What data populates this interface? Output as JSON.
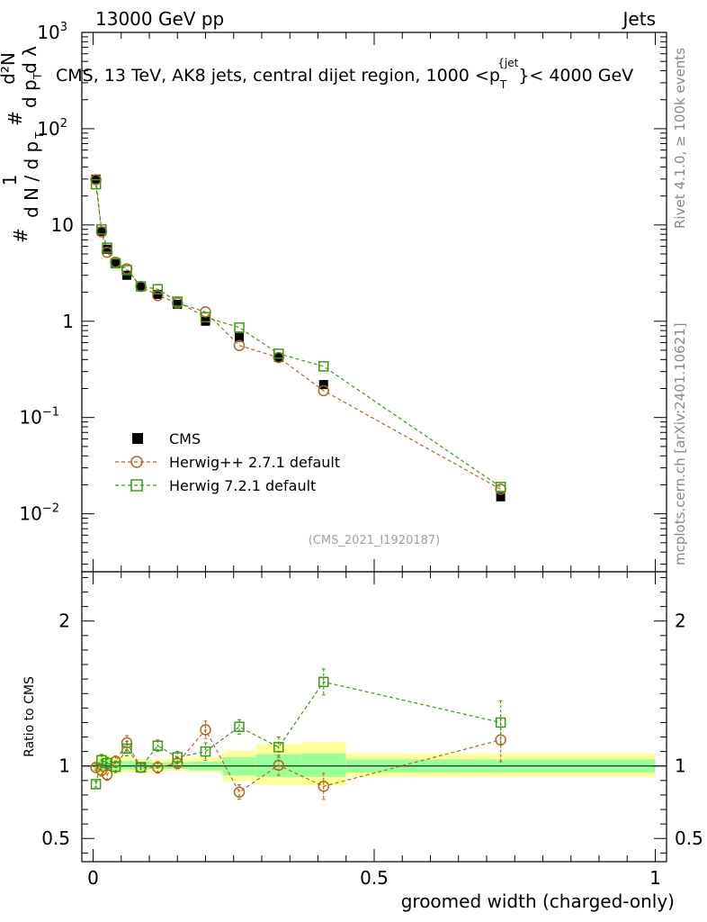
{
  "header": {
    "left": "13000 GeV pp",
    "right": "Jets"
  },
  "side_labels": {
    "rivet": "Rivet 4.1.0, ≥ 100k events",
    "mcplots": "mcplots.cern.ch [arXiv:2401.10621]"
  },
  "colors": {
    "cms": "#000000",
    "herwigpp": "#b5651d",
    "herwig7": "#3a9a12",
    "band_outer": "#ffff99",
    "band_inner": "#99ff99"
  },
  "chart_data": [
    {
      "type": "scatter",
      "panel": "main",
      "title": "CMS, 13 TeV, AK8 jets, central dijet region, 1000 <p_T^{jet}< 4000 GeV",
      "title_parts": {
        "pre": "CMS, 13 TeV, AK8 jets, central dijet region, 1000 <p",
        "sub": "T",
        "sup": "{jet",
        "post": "}< 4000 GeV"
      },
      "ylabel": "1/(dN/dp_T) d²N/(dp_T dλ)",
      "ylabel_parts": {
        "frac1_num": "1",
        "frac1_den": "d N / d p",
        "frac2_num": "d²N",
        "frac2_den": "d p  d λ",
        "hash": "#",
        "sub_T": "T"
      },
      "yscale": "log",
      "ylim": [
        0.0025,
        1000
      ],
      "xlim": [
        -0.02,
        1.02
      ],
      "y_ticks": [
        {
          "value": 0.01,
          "base": "10",
          "exp": "−2"
        },
        {
          "value": 0.1,
          "base": "10",
          "exp": "−1"
        },
        {
          "value": 1,
          "base": "1",
          "exp": ""
        },
        {
          "value": 10,
          "base": "10",
          "exp": ""
        },
        {
          "value": 100,
          "base": "10",
          "exp": "2"
        },
        {
          "value": 1000,
          "base": "10",
          "exp": "3"
        }
      ],
      "watermark": "(CMS_2021_I1920187)",
      "legend_position": "lower-left",
      "series": [
        {
          "name": "CMS",
          "style": "filled-square",
          "x": [
            0.005,
            0.015,
            0.025,
            0.04,
            0.06,
            0.085,
            0.115,
            0.15,
            0.2,
            0.26,
            0.33,
            0.41,
            0.725
          ],
          "y": [
            30,
            8.6,
            5.6,
            4.0,
            3.0,
            2.3,
            1.9,
            1.5,
            1.0,
            0.68,
            0.42,
            0.22,
            0.015
          ]
        },
        {
          "name": "Herwig++ 2.7.1 default",
          "style": "open-circle",
          "x": [
            0.005,
            0.015,
            0.025,
            0.04,
            0.06,
            0.085,
            0.115,
            0.15,
            0.2,
            0.26,
            0.33,
            0.41,
            0.725
          ],
          "y": [
            29.5,
            8.5,
            5.2,
            4.1,
            3.5,
            2.3,
            1.85,
            1.55,
            1.25,
            0.56,
            0.42,
            0.19,
            0.018
          ]
        },
        {
          "name": "Herwig 7.2.1 default",
          "style": "open-square",
          "x": [
            0.005,
            0.015,
            0.025,
            0.04,
            0.06,
            0.085,
            0.115,
            0.15,
            0.2,
            0.26,
            0.33,
            0.41,
            0.725
          ],
          "y": [
            26.5,
            9.0,
            5.8,
            4.0,
            3.4,
            2.3,
            2.15,
            1.6,
            1.1,
            0.86,
            0.46,
            0.34,
            0.019
          ]
        }
      ]
    },
    {
      "type": "scatter",
      "panel": "ratio",
      "xlabel": "groomed width (charged-only)",
      "ylabel": "Ratio to CMS",
      "xlim": [
        -0.02,
        1.02
      ],
      "ylim": [
        0.34,
        2.34
      ],
      "x_ticks": [
        0,
        0.5,
        1
      ],
      "x_tick_labels": [
        "0",
        "0.5",
        "1"
      ],
      "y_ticks": [
        0.5,
        1,
        2
      ],
      "y_tick_labels": [
        "0.5",
        "1",
        "2"
      ],
      "bins": [
        0,
        0.01,
        0.02,
        0.03,
        0.05,
        0.07,
        0.1,
        0.13,
        0.17,
        0.23,
        0.29,
        0.37,
        0.45,
        1.0
      ],
      "band_outer": [
        [
          0.955,
          1.045
        ],
        [
          0.93,
          1.085
        ],
        [
          0.95,
          1.075
        ],
        [
          0.945,
          1.07
        ],
        [
          0.955,
          1.065
        ],
        [
          0.955,
          1.05
        ],
        [
          0.96,
          1.045
        ],
        [
          0.965,
          1.05
        ],
        [
          0.96,
          1.06
        ],
        [
          0.895,
          1.105
        ],
        [
          0.87,
          1.15
        ],
        [
          0.865,
          1.165
        ],
        [
          0.925,
          1.085
        ]
      ],
      "band_inner": [
        [
          0.975,
          1.025
        ],
        [
          0.96,
          1.05
        ],
        [
          0.97,
          1.045
        ],
        [
          0.97,
          1.035
        ],
        [
          0.975,
          1.035
        ],
        [
          0.975,
          1.03
        ],
        [
          0.98,
          1.025
        ],
        [
          0.98,
          1.025
        ],
        [
          0.97,
          1.03
        ],
        [
          0.935,
          1.06
        ],
        [
          0.925,
          1.08
        ],
        [
          0.925,
          1.085
        ],
        [
          0.955,
          1.045
        ]
      ],
      "series": [
        {
          "name": "Herwig++ 2.7.1 default",
          "x": [
            0.005,
            0.015,
            0.025,
            0.04,
            0.06,
            0.085,
            0.115,
            0.15,
            0.2,
            0.26,
            0.33,
            0.41,
            0.725
          ],
          "y": [
            0.99,
            0.97,
            0.94,
            1.03,
            1.16,
            0.99,
            0.99,
            1.02,
            1.25,
            0.82,
            1.005,
            0.86,
            1.18
          ],
          "err": [
            0.02,
            0.04,
            0.04,
            0.04,
            0.05,
            0.03,
            0.04,
            0.04,
            0.06,
            0.05,
            0.07,
            0.09,
            0.15
          ]
        },
        {
          "name": "Herwig 7.2.1 default",
          "x": [
            0.005,
            0.015,
            0.025,
            0.04,
            0.06,
            0.085,
            0.115,
            0.15,
            0.2,
            0.26,
            0.33,
            0.41,
            0.725
          ],
          "y": [
            0.875,
            1.04,
            1.02,
            0.995,
            1.12,
            0.99,
            1.14,
            1.06,
            1.1,
            1.27,
            1.13,
            1.58,
            1.3
          ],
          "err": [
            0.02,
            0.04,
            0.04,
            0.04,
            0.05,
            0.03,
            0.04,
            0.04,
            0.06,
            0.05,
            0.07,
            0.09,
            0.15
          ]
        }
      ]
    }
  ]
}
